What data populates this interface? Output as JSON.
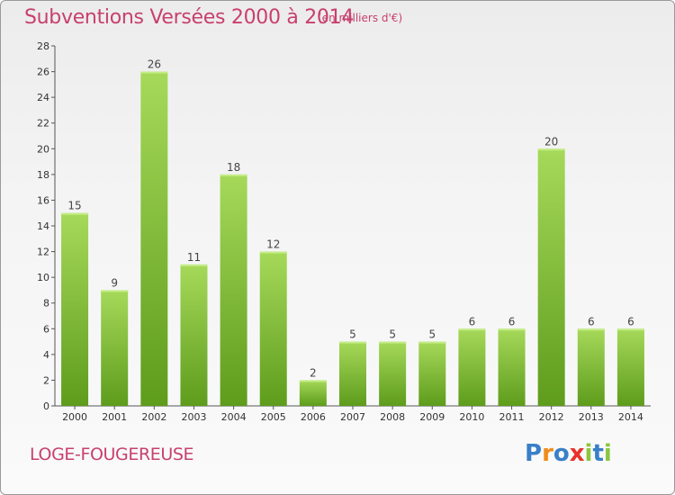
{
  "header": {
    "title": "Subventions Versées 2000 à 2014",
    "subtitle": "(en milliers d'€)"
  },
  "footer": {
    "place": "LOGE-FOUGEREUSE",
    "logo": "Proxiti"
  },
  "colors": {
    "title": "#c8406e",
    "bar_light": "#a6d95a",
    "bar_dark": "#5e9c1c",
    "logo_letters": [
      "#3a7fc8",
      "#f08c1c",
      "#3a7fc8",
      "#e8322a",
      "#8cc63f",
      "#3a7fc8",
      "#8cc63f"
    ]
  },
  "chart_data": {
    "type": "bar",
    "title": "Subventions Versées 2000 à 2014",
    "xlabel": "",
    "ylabel": "",
    "categories": [
      "2000",
      "2001",
      "2002",
      "2003",
      "2004",
      "2005",
      "2006",
      "2007",
      "2008",
      "2009",
      "2010",
      "2011",
      "2012",
      "2013",
      "2014"
    ],
    "values": [
      15,
      9,
      26,
      11,
      18,
      12,
      2,
      5,
      5,
      5,
      6,
      6,
      20,
      6,
      6
    ],
    "ylim": [
      0,
      28
    ],
    "yticks": [
      0,
      2,
      4,
      6,
      8,
      10,
      12,
      14,
      16,
      18,
      20,
      22,
      24,
      26,
      28
    ],
    "grid": false,
    "data_labels": true
  }
}
